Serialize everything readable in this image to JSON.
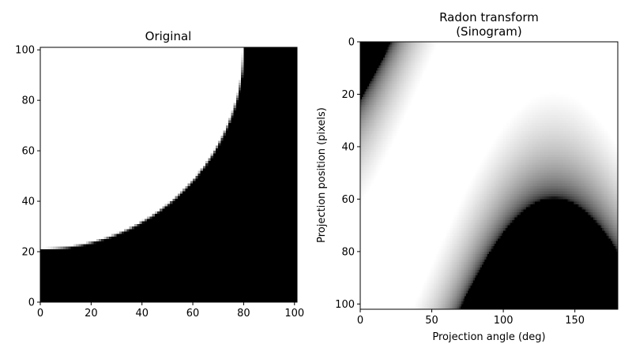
{
  "chart_data": [
    {
      "type": "heatmap",
      "title": "Original",
      "xlabel": "",
      "ylabel": "",
      "xlim": [
        0,
        101
      ],
      "ylim": [
        101,
        0
      ],
      "x_ticks": [
        0,
        20,
        40,
        60,
        80,
        100
      ],
      "y_ticks": [
        0,
        20,
        40,
        60,
        80,
        100
      ],
      "colormap": "gray",
      "content": {
        "shape": "white quarter-disc in upper-left on black background",
        "circle_center": [
          0,
          0
        ],
        "circle_radius": 80
      }
    },
    {
      "type": "heatmap",
      "title_lines": [
        "Radon transform",
        "(Sinogram)"
      ],
      "xlabel": "Projection angle (deg)",
      "ylabel": "Projection position (pixels)",
      "xlim": [
        0,
        180
      ],
      "ylim": [
        0,
        102
      ],
      "x_ticks": [
        0,
        50,
        100,
        150
      ],
      "y_ticks": [
        0,
        20,
        40,
        60,
        80,
        100
      ],
      "colormap": "gray",
      "content": {
        "sinogram_of": "Original",
        "brightest_point_angle_deg": 135,
        "brightest_point_position": 32
      }
    }
  ]
}
